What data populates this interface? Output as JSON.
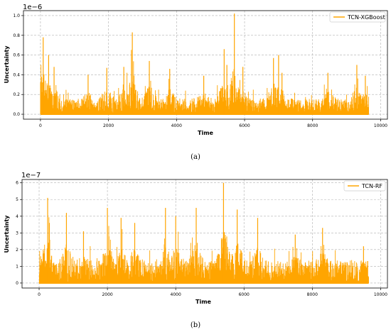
{
  "chart_data": [
    {
      "type": "line",
      "xlabel": "Time",
      "ylabel": "Uncertainty",
      "scale_label": "1e−6",
      "xlim": [
        -500,
        10200
      ],
      "ylim": [
        -0.05,
        1.05
      ],
      "x_ticks": [
        0,
        2000,
        4000,
        6000,
        8000,
        10000
      ],
      "y_ticks": [
        0.0,
        0.2,
        0.4,
        0.6,
        0.8,
        1.0
      ],
      "x_tick_labels": [
        "0",
        "2000",
        "4000",
        "6000",
        "8000",
        "10000"
      ],
      "y_tick_labels": [
        "0.0",
        "0.2",
        "0.4",
        "0.6",
        "0.8",
        "1.0"
      ],
      "grid": true,
      "legend_position": "top-right",
      "color": "#FFA500",
      "n_points": 9650,
      "series": [
        {
          "name": "TCN-XGBoost",
          "base_level": 0.15,
          "peaks": [
            [
              80,
              0.78
            ],
            [
              240,
              0.6
            ],
            [
              400,
              0.48
            ],
            [
              1400,
              0.4
            ],
            [
              1950,
              0.47
            ],
            [
              2450,
              0.48
            ],
            [
              2700,
              0.83
            ],
            [
              3200,
              0.54
            ],
            [
              3800,
              0.46
            ],
            [
              4800,
              0.39
            ],
            [
              5400,
              0.66
            ],
            [
              5480,
              0.5
            ],
            [
              5700,
              1.02
            ],
            [
              5950,
              0.48
            ],
            [
              6850,
              0.57
            ],
            [
              7000,
              0.6
            ],
            [
              7100,
              0.42
            ],
            [
              8450,
              0.42
            ],
            [
              9300,
              0.5
            ],
            [
              9550,
              0.39
            ]
          ]
        }
      ],
      "caption": "(a)"
    },
    {
      "type": "line",
      "xlabel": "Time",
      "ylabel": "Uncertainty",
      "scale_label": "1e−7",
      "xlim": [
        -500,
        10200
      ],
      "ylim": [
        -0.3,
        6.2
      ],
      "x_ticks": [
        0,
        2000,
        4000,
        6000,
        8000,
        10000
      ],
      "y_ticks": [
        0,
        1,
        2,
        3,
        4,
        5,
        6
      ],
      "x_tick_labels": [
        "0",
        "2000",
        "4000",
        "6000",
        "8000",
        "10000"
      ],
      "y_tick_labels": [
        "0",
        "1",
        "2",
        "3",
        "4",
        "5",
        "6"
      ],
      "grid": true,
      "legend_position": "top-right",
      "color": "#FFA500",
      "n_points": 9650,
      "series": [
        {
          "name": "TCN-RF",
          "base_level": 1.3,
          "peaks": [
            [
              250,
              5.1
            ],
            [
              300,
              3.6
            ],
            [
              800,
              4.2
            ],
            [
              1300,
              3.1
            ],
            [
              2000,
              4.5
            ],
            [
              2400,
              3.9
            ],
            [
              2800,
              3.6
            ],
            [
              3700,
              4.5
            ],
            [
              4000,
              4.0
            ],
            [
              4600,
              4.5
            ],
            [
              5400,
              6.0
            ],
            [
              5800,
              4.4
            ],
            [
              6400,
              3.9
            ],
            [
              7500,
              2.9
            ],
            [
              8300,
              3.3
            ],
            [
              9500,
              2.2
            ]
          ]
        }
      ],
      "caption": "(b)"
    }
  ]
}
